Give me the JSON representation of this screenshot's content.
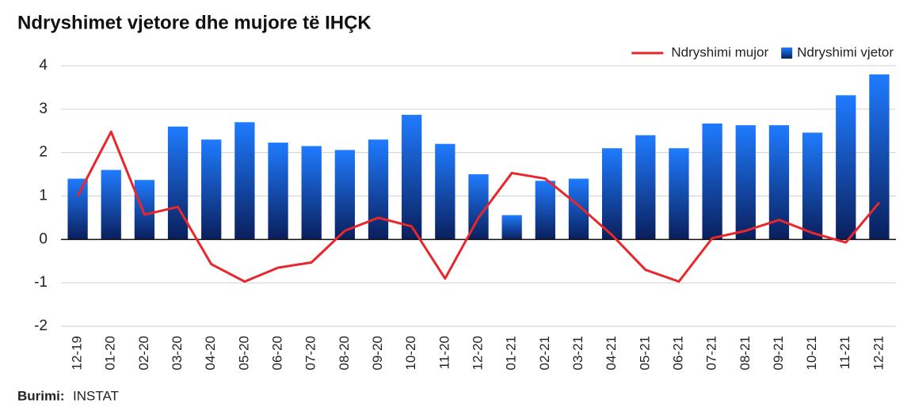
{
  "chart_data": {
    "type": "bar",
    "title": "Ndryshimet vjetore dhe mujore të IHÇK",
    "categories": [
      "12-19",
      "01-20",
      "02-20",
      "03-20",
      "04-20",
      "05-20",
      "06-20",
      "07-20",
      "08-20",
      "09-20",
      "10-20",
      "11-20",
      "12-20",
      "01-21",
      "02-21",
      "03-21",
      "04-21",
      "05-21",
      "06-21",
      "07-21",
      "08-21",
      "09-21",
      "10-21",
      "11-21",
      "12-21"
    ],
    "series": [
      {
        "name": "Ndryshimi mujor",
        "type": "line",
        "color": "#e8262b",
        "values": [
          1.0,
          2.48,
          0.57,
          0.75,
          -0.57,
          -0.97,
          -0.65,
          -0.53,
          0.2,
          0.5,
          0.3,
          -0.9,
          0.5,
          1.53,
          1.4,
          0.78,
          0.1,
          -0.7,
          -0.97,
          0.03,
          0.2,
          0.45,
          0.15,
          -0.07,
          0.85
        ]
      },
      {
        "name": "Ndryshimi vjetor",
        "type": "bar",
        "color": "#1a6fe0",
        "values": [
          1.4,
          1.6,
          1.37,
          2.6,
          2.3,
          2.7,
          2.23,
          2.15,
          2.06,
          2.3,
          2.87,
          2.2,
          1.5,
          0.56,
          1.35,
          1.4,
          2.1,
          2.4,
          2.1,
          2.67,
          2.63,
          2.63,
          2.46,
          3.32,
          3.8
        ]
      }
    ],
    "ylim": [
      -2,
      4
    ],
    "yticks": [
      -2,
      -1,
      0,
      1,
      2,
      3,
      4
    ],
    "grid": true,
    "legend": "top-right",
    "source_label": "Burimi:",
    "source": "INSTAT"
  }
}
